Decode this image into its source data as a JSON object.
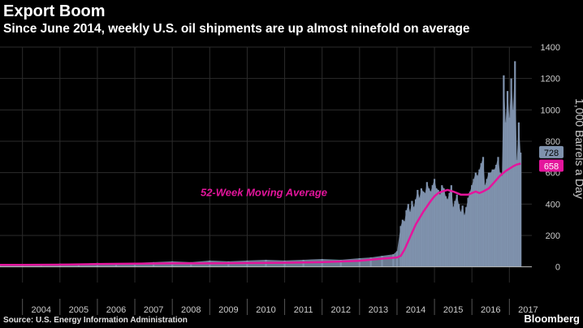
{
  "header": {
    "title": "Export Boom",
    "subtitle": "Since June 2014, weekly U.S. oil shipments are up almost ninefold on average"
  },
  "footer": {
    "source": "Source: U.S. Energy Information Administration",
    "brand": "Bloomberg"
  },
  "colors": {
    "background": "#000000",
    "bars": "#7f92ad",
    "moving_average": "#e4159c",
    "grid": "#2b2b2b",
    "axis_text": "#cccccc"
  },
  "chart_data": {
    "type": "bar",
    "title": "Export Boom",
    "subtitle": "Since June 2014, weekly U.S. oil shipments are up almost ninefold on average",
    "ylabel": "1,000 Barrels a Day",
    "ylim": [
      -100,
      1400
    ],
    "yticks": [
      0,
      200,
      400,
      600,
      800,
      1000,
      1200,
      1400
    ],
    "xlim": [
      2003.4,
      2017.6
    ],
    "xticks": [
      "2004",
      "2005",
      "2006",
      "2007",
      "2008",
      "2009",
      "2010",
      "2011",
      "2012",
      "2013",
      "2014",
      "2015",
      "2016",
      "2017"
    ],
    "grid": true,
    "y_axis_side": "right",
    "annotation": "52-Week Moving Average",
    "latest_values": {
      "weekly": 728,
      "moving_average": 658
    },
    "series": [
      {
        "type": "bar",
        "x": [
          2003.4,
          2004.0,
          2004.5,
          2005.0,
          2005.5,
          2006.0,
          2006.5,
          2007.0,
          2007.5,
          2008.0,
          2008.5,
          2009.0,
          2009.5,
          2010.0,
          2010.5,
          2011.0,
          2011.5,
          2012.0,
          2012.5,
          2013.0,
          2013.3,
          2013.6,
          2013.9,
          2014.0,
          2014.1,
          2014.15,
          2014.2,
          2014.25,
          2014.3,
          2014.35,
          2014.4,
          2014.45,
          2014.5,
          2014.55,
          2014.6,
          2014.65,
          2014.7,
          2014.75,
          2014.8,
          2014.85,
          2014.9,
          2014.95,
          2015.0,
          2015.05,
          2015.1,
          2015.15,
          2015.2,
          2015.25,
          2015.3,
          2015.35,
          2015.4,
          2015.45,
          2015.5,
          2015.55,
          2015.6,
          2015.65,
          2015.7,
          2015.75,
          2015.8,
          2015.85,
          2015.9,
          2015.95,
          2016.0,
          2016.05,
          2016.1,
          2016.15,
          2016.2,
          2016.25,
          2016.3,
          2016.35,
          2016.4,
          2016.45,
          2016.5,
          2016.55,
          2016.6,
          2016.65,
          2016.7,
          2016.75,
          2016.8,
          2016.85,
          2016.9,
          2016.95,
          2017.0,
          2017.05,
          2017.1,
          2017.15,
          2017.2,
          2017.25,
          2017.3
        ],
        "values": [
          15,
          18,
          12,
          20,
          18,
          25,
          20,
          25,
          30,
          35,
          30,
          40,
          35,
          40,
          45,
          40,
          45,
          50,
          45,
          55,
          60,
          70,
          80,
          100,
          260,
          300,
          290,
          360,
          400,
          350,
          420,
          380,
          430,
          490,
          440,
          500,
          480,
          470,
          540,
          500,
          480,
          520,
          560,
          500,
          490,
          460,
          520,
          500,
          450,
          430,
          470,
          520,
          380,
          420,
          460,
          400,
          350,
          390,
          330,
          380,
          440,
          480,
          520,
          560,
          600,
          580,
          620,
          660,
          700,
          520,
          560,
          600,
          600,
          620,
          620,
          650,
          700,
          600,
          580,
          1220,
          920,
          1120,
          950,
          1200,
          1000,
          1310,
          680,
          920,
          728
        ]
      },
      {
        "name": "52-Week Moving Average",
        "type": "line",
        "x": [
          2003.4,
          2004.0,
          2005.0,
          2006.0,
          2007.0,
          2008.0,
          2009.0,
          2010.0,
          2011.0,
          2012.0,
          2013.0,
          2013.5,
          2014.0,
          2014.1,
          2014.2,
          2014.35,
          2014.5,
          2014.7,
          2014.9,
          2015.0,
          2015.1,
          2015.2,
          2015.35,
          2015.5,
          2015.7,
          2015.9,
          2016.0,
          2016.1,
          2016.2,
          2016.3,
          2016.45,
          2016.6,
          2016.75,
          2016.9,
          2017.0,
          2017.1,
          2017.2,
          2017.3
        ],
        "values": [
          12,
          12,
          14,
          18,
          20,
          22,
          22,
          24,
          26,
          30,
          38,
          50,
          60,
          70,
          110,
          190,
          270,
          350,
          420,
          450,
          470,
          480,
          490,
          480,
          460,
          460,
          470,
          480,
          470,
          480,
          500,
          540,
          580,
          610,
          625,
          640,
          652,
          658
        ]
      }
    ]
  }
}
